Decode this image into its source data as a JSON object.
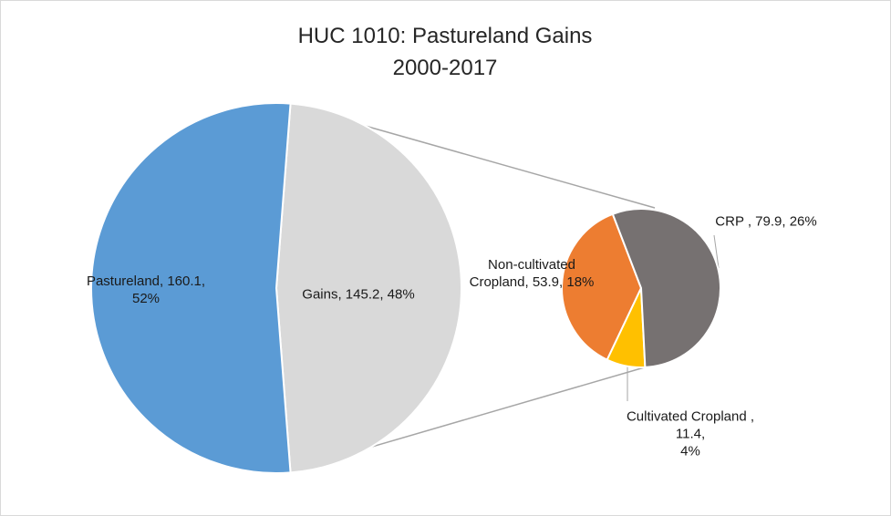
{
  "chart_data": {
    "type": "pie_of_pie",
    "title": "HUC 1010: Pastureland Gains",
    "subtitle": "2000-2017",
    "values": [
      160.1,
      145.2
    ],
    "value_labels": [
      "Pastureland, 160.1,\n52%",
      "Gains, 145.2, 48%"
    ],
    "colors": [
      "#5b9bd5",
      "#d9d9d9"
    ],
    "breakdown": {
      "values": [
        79.9,
        11.4,
        53.9
      ],
      "value_labels": [
        "CRP , 79.9, 26%",
        "Cultivated Cropland ,\n11.4,\n4%",
        "Non-cultivated\nCropland, 53.9, 18%"
      ],
      "colors": [
        "#767171",
        "#ffc000",
        "#ed7d31"
      ]
    }
  }
}
